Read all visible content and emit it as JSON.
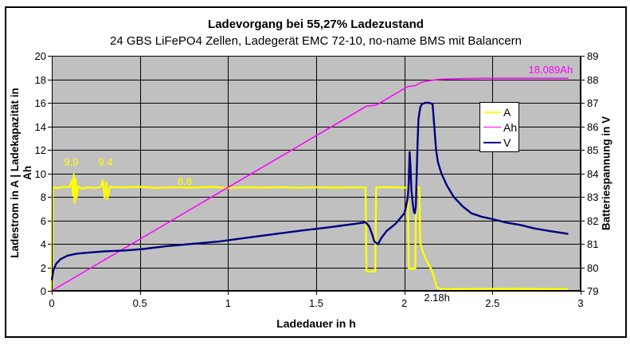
{
  "page": {
    "background": "#ffffff",
    "frame_border": "#000000"
  },
  "chart_data": {
    "type": "line",
    "title": "Ladevorgang bei 55,27% Ladezustand",
    "subtitle": "24 GBS LiFePO4 Zellen, Ladegerät EMC 72-10, no-name BMS mit Balancern",
    "plot_bg": "#c0c0c0",
    "grid_color": "#000000",
    "grid": true,
    "x_axis": {
      "label": "Ladedauer in h",
      "range": [
        0,
        3
      ],
      "ticks": [
        0,
        0.5,
        1,
        1.5,
        2,
        2.5,
        3
      ],
      "tick_labels": [
        "0",
        "0.5",
        "1",
        "1.5",
        "2",
        "2.5",
        "3"
      ]
    },
    "left_axis": {
      "label": "Ladestrom in A | Ladekapazität in Ah",
      "label_line1": "Ladestrom in A | Ladekapazität in",
      "label_line2": "Ah",
      "range": [
        0,
        20
      ],
      "ticks": [
        0,
        2,
        4,
        6,
        8,
        10,
        12,
        14,
        16,
        18,
        20
      ]
    },
    "right_axis": {
      "label": "Batteriespannung in V",
      "range": [
        79,
        89
      ],
      "ticks": [
        79,
        80,
        81,
        82,
        83,
        84,
        85,
        86,
        87,
        88,
        89
      ]
    },
    "legend": {
      "position": "inside-upper-right",
      "entries": [
        "A",
        "Ah",
        "V"
      ]
    },
    "series": [
      {
        "name": "A",
        "axis": "left",
        "color": "#ffff00",
        "width": 2.4,
        "points": [
          [
            0,
            0
          ],
          [
            0.005,
            8.8
          ],
          [
            0.04,
            8.75
          ],
          [
            0.07,
            8.85
          ],
          [
            0.1,
            8.8
          ],
          [
            0.115,
            9.4
          ],
          [
            0.12,
            8.1
          ],
          [
            0.125,
            9.9
          ],
          [
            0.13,
            7.5
          ],
          [
            0.135,
            9.5
          ],
          [
            0.14,
            7.9
          ],
          [
            0.15,
            8.9
          ],
          [
            0.17,
            8.7
          ],
          [
            0.2,
            8.8
          ],
          [
            0.24,
            8.75
          ],
          [
            0.28,
            8.85
          ],
          [
            0.29,
            9.4
          ],
          [
            0.3,
            7.9
          ],
          [
            0.31,
            9.2
          ],
          [
            0.315,
            7.8
          ],
          [
            0.33,
            8.85
          ],
          [
            0.4,
            8.8
          ],
          [
            0.5,
            8.85
          ],
          [
            0.6,
            8.75
          ],
          [
            0.7,
            8.82
          ],
          [
            0.8,
            8.78
          ],
          [
            0.9,
            8.85
          ],
          [
            1.0,
            8.75
          ],
          [
            1.1,
            8.82
          ],
          [
            1.2,
            8.78
          ],
          [
            1.3,
            8.83
          ],
          [
            1.4,
            8.76
          ],
          [
            1.5,
            8.82
          ],
          [
            1.6,
            8.78
          ],
          [
            1.7,
            8.8
          ],
          [
            1.78,
            8.8
          ],
          [
            1.785,
            1.65
          ],
          [
            1.835,
            1.65
          ],
          [
            1.84,
            8.8
          ],
          [
            1.92,
            8.82
          ],
          [
            2.0,
            8.78
          ],
          [
            2.02,
            8.8
          ],
          [
            2.025,
            1.9
          ],
          [
            2.062,
            1.9
          ],
          [
            2.067,
            8.8
          ],
          [
            2.085,
            8.8
          ],
          [
            2.09,
            4.1
          ],
          [
            2.105,
            3.3
          ],
          [
            2.125,
            2.6
          ],
          [
            2.15,
            1.9
          ],
          [
            2.165,
            1.35
          ],
          [
            2.175,
            0.8
          ],
          [
            2.185,
            0.25
          ],
          [
            2.21,
            0.15
          ],
          [
            2.5,
            0.16
          ],
          [
            2.93,
            0.15
          ]
        ]
      },
      {
        "name": "Ah",
        "axis": "left",
        "color": "#ff00ff",
        "width": 1.5,
        "points": [
          [
            0,
            0
          ],
          [
            0.5,
            4.4
          ],
          [
            1.0,
            8.8
          ],
          [
            1.5,
            13.2
          ],
          [
            1.785,
            15.71
          ],
          [
            1.84,
            15.8
          ],
          [
            2.02,
            17.38
          ],
          [
            2.062,
            17.46
          ],
          [
            2.09,
            17.7
          ],
          [
            2.12,
            17.82
          ],
          [
            2.15,
            17.9
          ],
          [
            2.19,
            17.98
          ],
          [
            2.24,
            18.03
          ],
          [
            2.32,
            18.06
          ],
          [
            2.45,
            18.085
          ],
          [
            2.6,
            18.089
          ],
          [
            2.93,
            18.089
          ]
        ]
      },
      {
        "name": "V",
        "axis": "right",
        "color": "#000080",
        "width": 2.4,
        "points": [
          [
            0,
            79.45
          ],
          [
            0.01,
            79.9
          ],
          [
            0.025,
            80.15
          ],
          [
            0.05,
            80.35
          ],
          [
            0.09,
            80.5
          ],
          [
            0.14,
            80.58
          ],
          [
            0.2,
            80.62
          ],
          [
            0.3,
            80.68
          ],
          [
            0.42,
            80.72
          ],
          [
            0.52,
            80.78
          ],
          [
            0.65,
            80.9
          ],
          [
            0.8,
            81.0
          ],
          [
            0.95,
            81.1
          ],
          [
            1.1,
            81.25
          ],
          [
            1.25,
            81.4
          ],
          [
            1.4,
            81.55
          ],
          [
            1.55,
            81.68
          ],
          [
            1.65,
            81.78
          ],
          [
            1.72,
            81.85
          ],
          [
            1.78,
            81.92
          ],
          [
            1.8,
            81.75
          ],
          [
            1.82,
            81.35
          ],
          [
            1.83,
            81.1
          ],
          [
            1.85,
            80.98
          ],
          [
            1.87,
            81.25
          ],
          [
            1.9,
            81.55
          ],
          [
            1.95,
            81.85
          ],
          [
            2.0,
            82.3
          ],
          [
            2.01,
            82.6
          ],
          [
            2.02,
            83.0
          ],
          [
            2.025,
            83.6
          ],
          [
            2.03,
            84.9
          ],
          [
            2.035,
            84.3
          ],
          [
            2.04,
            83.3
          ],
          [
            2.05,
            82.6
          ],
          [
            2.055,
            82.35
          ],
          [
            2.06,
            82.3
          ],
          [
            2.065,
            82.6
          ],
          [
            2.07,
            84.0
          ],
          [
            2.075,
            85.3
          ],
          [
            2.08,
            86.3
          ],
          [
            2.09,
            86.8
          ],
          [
            2.1,
            86.95
          ],
          [
            2.12,
            87.0
          ],
          [
            2.14,
            87.0
          ],
          [
            2.16,
            86.95
          ],
          [
            2.17,
            86.0
          ],
          [
            2.18,
            85.0
          ],
          [
            2.19,
            84.5
          ],
          [
            2.21,
            84.0
          ],
          [
            2.24,
            83.5
          ],
          [
            2.28,
            83.0
          ],
          [
            2.33,
            82.6
          ],
          [
            2.38,
            82.3
          ],
          [
            2.44,
            82.15
          ],
          [
            2.5,
            82.05
          ],
          [
            2.58,
            81.9
          ],
          [
            2.66,
            81.8
          ],
          [
            2.74,
            81.65
          ],
          [
            2.82,
            81.55
          ],
          [
            2.88,
            81.48
          ],
          [
            2.93,
            81.42
          ]
        ]
      }
    ],
    "annotations": [
      {
        "text": "9.9",
        "x": 0.11,
        "y": 10.9,
        "color": "#ffff00"
      },
      {
        "text": "9.4",
        "x": 0.305,
        "y": 10.9,
        "color": "#ffff00"
      },
      {
        "text": "8.8",
        "x": 0.755,
        "y": 9.3,
        "color": "#ffff00"
      },
      {
        "text": "18.089Ah",
        "x": 2.83,
        "y": 18.8,
        "color": "#ff00ff"
      },
      {
        "text": "2.18h",
        "x": 2.185,
        "y": -0.6,
        "color": "#000000"
      }
    ]
  }
}
